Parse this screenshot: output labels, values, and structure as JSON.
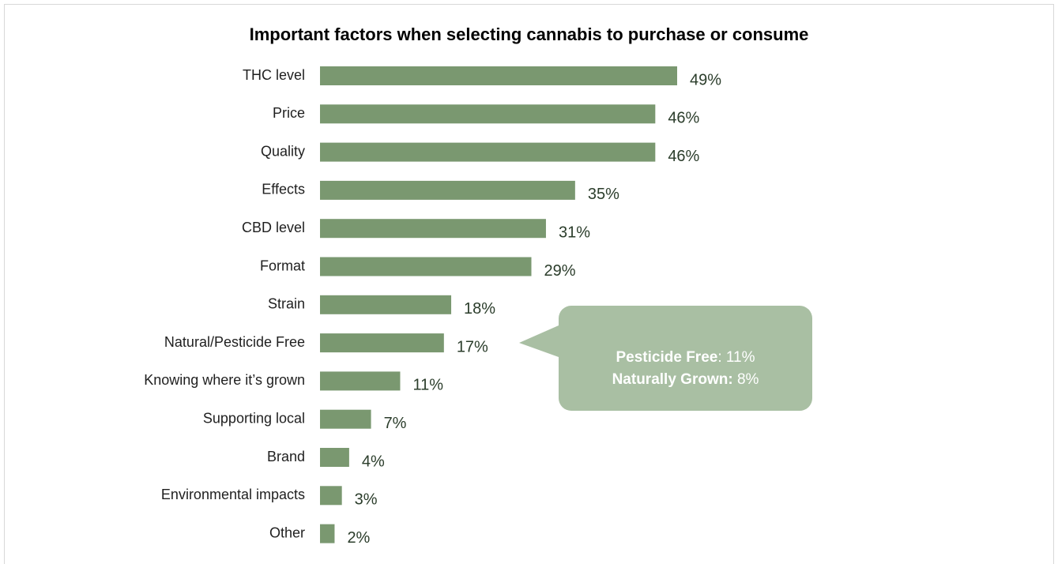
{
  "chart_data": {
    "type": "bar",
    "orientation": "horizontal",
    "title": "Important factors when selecting cannabis to purchase or consume",
    "categories": [
      "THC level",
      "Price",
      "Quality",
      "Effects",
      "CBD level",
      "Format",
      "Strain",
      "Natural/Pesticide Free",
      "Knowing where it’s grown",
      "Supporting local",
      "Brand",
      "Environmental impacts",
      "Other"
    ],
    "values": [
      49,
      46,
      46,
      35,
      31,
      29,
      18,
      17,
      11,
      7,
      4,
      3,
      2
    ],
    "value_labels": [
      "49%",
      "46%",
      "46%",
      "35%",
      "31%",
      "29%",
      "18%",
      "17%",
      "11%",
      "7%",
      "4%",
      "3%",
      "2%"
    ],
    "unit": "%",
    "xlim": [
      0,
      49
    ],
    "grid": false,
    "legend": "none",
    "bar_color": "#7a9870",
    "annotation": {
      "target_category": "Natural/Pesticide Free",
      "lines": [
        {
          "label": "Pesticide Free",
          "sep": ": ",
          "value": "11%"
        },
        {
          "label": "Naturally Grown:",
          "sep": " ",
          "value": "8%"
        }
      ],
      "background_color": "#a9bfa3"
    }
  }
}
